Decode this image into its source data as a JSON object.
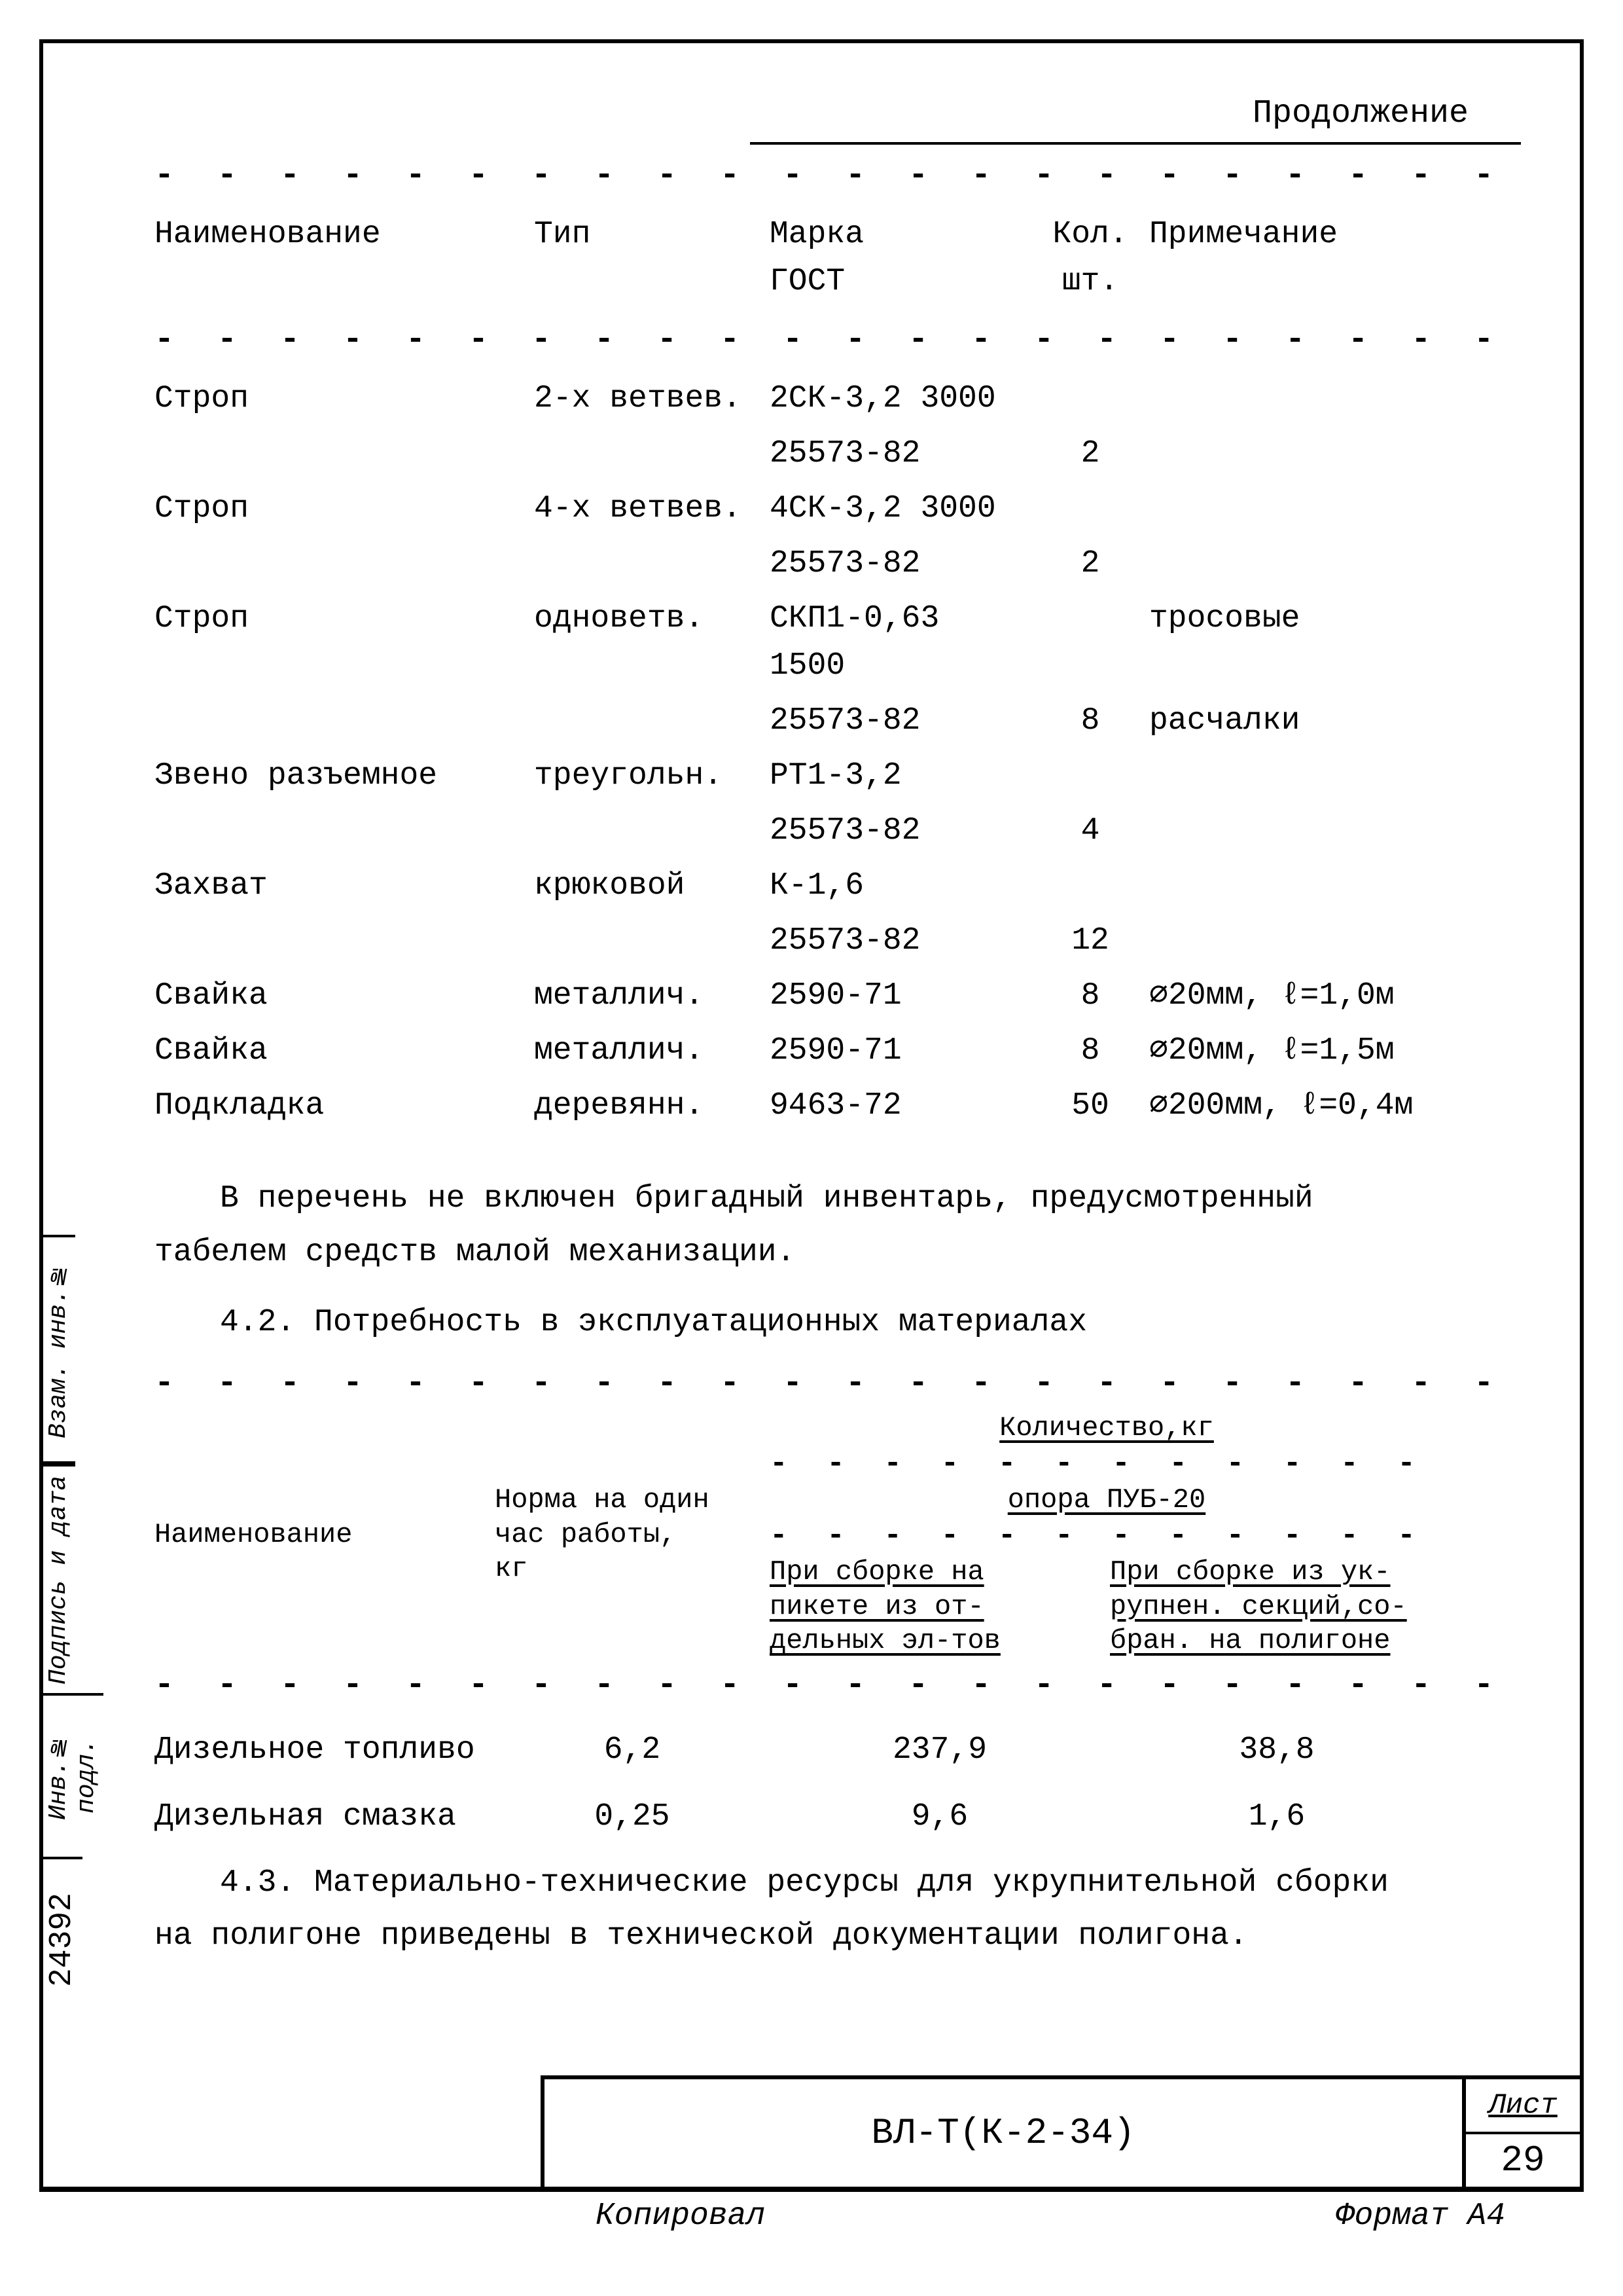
{
  "continuation_label": "Продолжение",
  "table1": {
    "headers": {
      "name": "Наименование",
      "type": "Тип",
      "mark": "Марка\nГОСТ",
      "qty": "Кол.\nшт.",
      "note": "Примечание"
    },
    "rows": [
      {
        "name": "Строп",
        "type": "2-х ветвев.",
        "mark": "2СК-3,2 3000",
        "qty": "",
        "note": ""
      },
      {
        "name": "",
        "type": "",
        "mark": "25573-82",
        "qty": "2",
        "note": ""
      },
      {
        "name": "Строп",
        "type": "4-х ветвев.",
        "mark": "4СК-3,2 3000",
        "qty": "",
        "note": ""
      },
      {
        "name": "",
        "type": "",
        "mark": "25573-82",
        "qty": "2",
        "note": ""
      },
      {
        "name": "Строп",
        "type": "одноветв.",
        "mark": "СКП1-0,63 1500",
        "qty": "",
        "note": "тросовые"
      },
      {
        "name": "",
        "type": "",
        "mark": "25573-82",
        "qty": "8",
        "note": "расчалки"
      },
      {
        "name": "Звено разъемное",
        "type": "треугольн.",
        "mark": "РТ1-3,2",
        "qty": "",
        "note": ""
      },
      {
        "name": "",
        "type": "",
        "mark": "25573-82",
        "qty": "4",
        "note": ""
      },
      {
        "name": "Захват",
        "type": "крюковой",
        "mark": "К-1,6",
        "qty": "",
        "note": ""
      },
      {
        "name": "",
        "type": "",
        "mark": "25573-82",
        "qty": "12",
        "note": ""
      },
      {
        "name": "Свайка",
        "type": "металлич.",
        "mark": "2590-71",
        "qty": "8",
        "note": "⌀20мм, ℓ=1,0м"
      },
      {
        "name": "Свайка",
        "type": "металлич.",
        "mark": "2590-71",
        "qty": "8",
        "note": "⌀20мм, ℓ=1,5м"
      },
      {
        "name": "Подкладка",
        "type": "деревянн.",
        "mark": "9463-72",
        "qty": "50",
        "note": "⌀200мм, ℓ=0,4м"
      }
    ]
  },
  "paragraph1_line1": "В перечень не включен бригадный инвентарь, предусмотренный",
  "paragraph1_line2": "табелем средств малой механизации.",
  "section_4_2": "4.2. Потребность в эксплуатационных материалах",
  "table2": {
    "top_right_1": "Количество,кг",
    "top_right_2": "опора ПУБ-20",
    "col1": "Наименование",
    "col2": "Норма на один\nчас работы,\nкг",
    "sub1": "При сборке на\nпикете из от-\nдельных эл-тов",
    "sub2": "При сборке из ук-\nрупнен. секций,со-\nбран. на полигоне",
    "rows": [
      {
        "name": "Дизельное топливо",
        "norm": "6,2",
        "v1": "237,9",
        "v2": "38,8"
      },
      {
        "name": "Дизельная смазка",
        "norm": "0,25",
        "v1": "9,6",
        "v2": "1,6"
      }
    ]
  },
  "paragraph2_line1": "4.3. Материально-технические ресурсы для укрупнительной сборки",
  "paragraph2_line2": "на полигоне приведены в технической документации полигона.",
  "side": {
    "inv_podl": "Инв.№ подл.",
    "inv_num": "24392",
    "podpis": "Подпись и дата",
    "vzam": "Взам. инв.№"
  },
  "title_block": {
    "doc": "ВЛ-Т(К-2-34)",
    "page_label": "Лист",
    "page_num": "29"
  },
  "footer": {
    "left": "Копировал",
    "right": "Формат А4"
  },
  "colors": {
    "ink": "#000000",
    "paper": "#ffffff"
  }
}
